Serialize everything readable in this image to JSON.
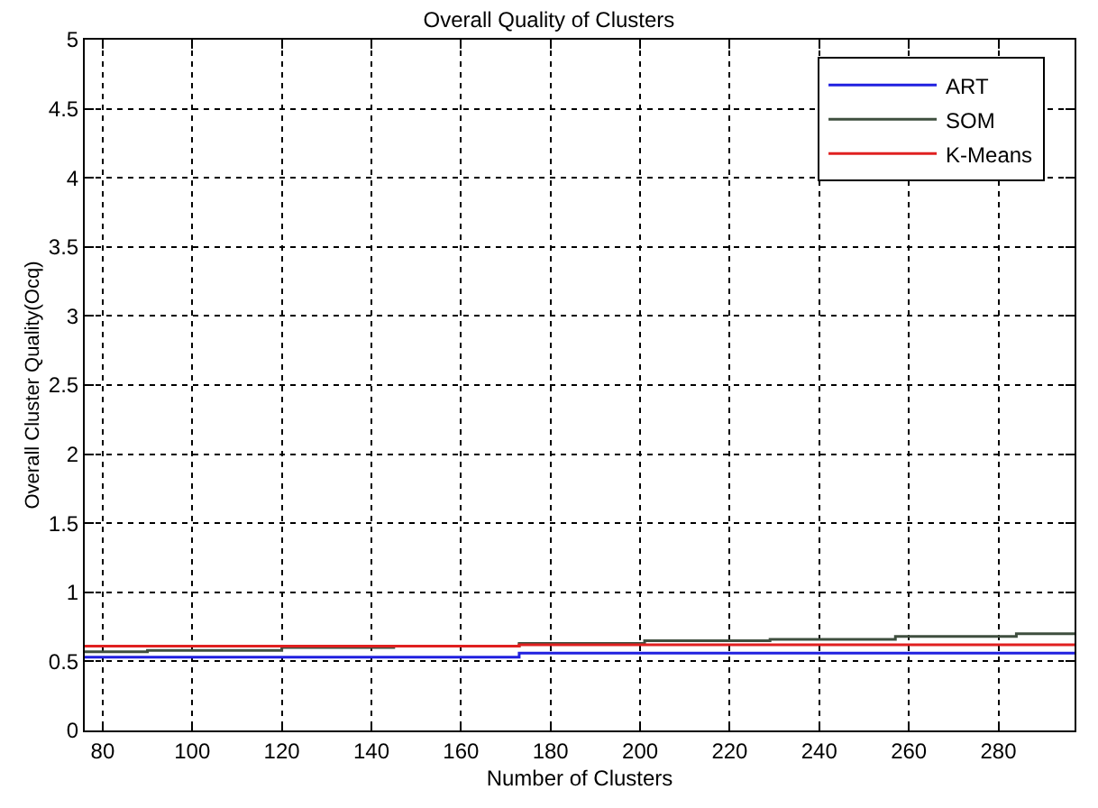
{
  "chart_data": {
    "type": "step",
    "title": "Overall Quality of Clusters",
    "xlabel": "Number of Clusters",
    "ylabel": "Overall Cluster Quality(Ocq)",
    "series": [
      {
        "name": "ART",
        "color": "#2020e0",
        "x": [
          76,
          173,
          297
        ],
        "values": [
          0.53,
          0.56,
          0.56
        ]
      },
      {
        "name": "SOM",
        "color": "#3f4f3f",
        "x": [
          76,
          90,
          120,
          145,
          173,
          201,
          229,
          257,
          284,
          297
        ],
        "values": [
          0.57,
          0.58,
          0.6,
          0.61,
          0.63,
          0.65,
          0.66,
          0.68,
          0.7,
          0.7
        ]
      },
      {
        "name": "K-Means",
        "color": "#e02020",
        "x": [
          76,
          173,
          297
        ],
        "values": [
          0.61,
          0.62,
          0.62
        ]
      }
    ],
    "xlim": [
      76,
      297
    ],
    "xticks": [
      80,
      100,
      120,
      140,
      160,
      180,
      200,
      220,
      240,
      260,
      280
    ],
    "ylim": [
      0,
      5
    ],
    "yticks": [
      0,
      0.5,
      1,
      1.5,
      2,
      2.5,
      3,
      3.5,
      4,
      4.5,
      5
    ],
    "grid": true,
    "legend": "top right",
    "line_style": "solid"
  }
}
